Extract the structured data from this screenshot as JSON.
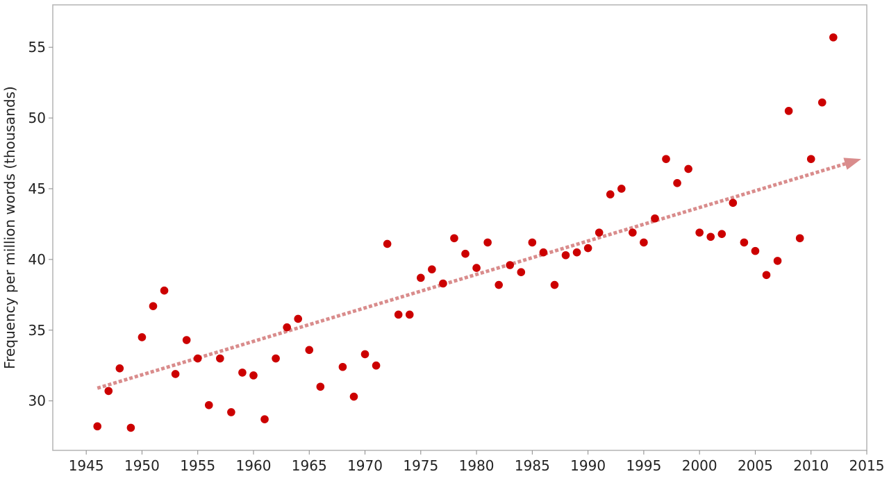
{
  "chart_data": {
    "type": "scatter",
    "title": "",
    "xlabel": "",
    "ylabel": "Frequency per million words (thousands)",
    "xlim": [
      1942,
      2015
    ],
    "ylim": [
      26.5,
      58
    ],
    "x_ticks": [
      "1945",
      "1950",
      "1955",
      "1960",
      "1965",
      "1970",
      "1975",
      "1980",
      "1985",
      "1990",
      "1995",
      "2000",
      "2005",
      "2010",
      "2015"
    ],
    "y_ticks": [
      "30",
      "35",
      "40",
      "45",
      "50",
      "55"
    ],
    "grid": false,
    "legend": "none",
    "point_color": "#cc0000",
    "trend_color": "#d98c8c",
    "trend_line": {
      "style": "dotted-arrow",
      "start": [
        1946,
        30.9
      ],
      "end": [
        2014.5,
        47.1
      ]
    },
    "points": [
      [
        1946,
        28.2
      ],
      [
        1947,
        30.7
      ],
      [
        1948,
        32.3
      ],
      [
        1949,
        28.1
      ],
      [
        1950,
        34.5
      ],
      [
        1951,
        36.7
      ],
      [
        1952,
        37.8
      ],
      [
        1953,
        31.9
      ],
      [
        1954,
        34.3
      ],
      [
        1955,
        33.0
      ],
      [
        1956,
        29.7
      ],
      [
        1957,
        33.0
      ],
      [
        1958,
        29.2
      ],
      [
        1959,
        32.0
      ],
      [
        1960,
        31.8
      ],
      [
        1961,
        28.7
      ],
      [
        1962,
        33.0
      ],
      [
        1963,
        35.2
      ],
      [
        1964,
        35.8
      ],
      [
        1965,
        33.6
      ],
      [
        1966,
        31.0
      ],
      [
        1968,
        32.4
      ],
      [
        1969,
        30.3
      ],
      [
        1970,
        33.3
      ],
      [
        1971,
        32.5
      ],
      [
        1972,
        41.1
      ],
      [
        1973,
        36.1
      ],
      [
        1974,
        36.1
      ],
      [
        1975,
        38.7
      ],
      [
        1976,
        39.3
      ],
      [
        1977,
        38.3
      ],
      [
        1978,
        41.5
      ],
      [
        1979,
        40.4
      ],
      [
        1980,
        39.4
      ],
      [
        1981,
        41.2
      ],
      [
        1982,
        38.2
      ],
      [
        1983,
        39.6
      ],
      [
        1984,
        39.1
      ],
      [
        1985,
        41.2
      ],
      [
        1986,
        40.5
      ],
      [
        1987,
        38.2
      ],
      [
        1988,
        40.3
      ],
      [
        1989,
        40.5
      ],
      [
        1990,
        40.8
      ],
      [
        1991,
        41.9
      ],
      [
        1992,
        44.6
      ],
      [
        1993,
        45.0
      ],
      [
        1994,
        41.9
      ],
      [
        1995,
        41.2
      ],
      [
        1996,
        42.9
      ],
      [
        1997,
        47.1
      ],
      [
        1998,
        45.4
      ],
      [
        1999,
        46.4
      ],
      [
        2000,
        41.9
      ],
      [
        2001,
        41.6
      ],
      [
        2002,
        41.8
      ],
      [
        2003,
        44.0
      ],
      [
        2004,
        41.2
      ],
      [
        2005,
        40.6
      ],
      [
        2006,
        38.9
      ],
      [
        2007,
        39.9
      ],
      [
        2008,
        50.5
      ],
      [
        2009,
        41.5
      ],
      [
        2010,
        47.1
      ],
      [
        2011,
        51.1
      ],
      [
        2012,
        55.7
      ]
    ]
  }
}
